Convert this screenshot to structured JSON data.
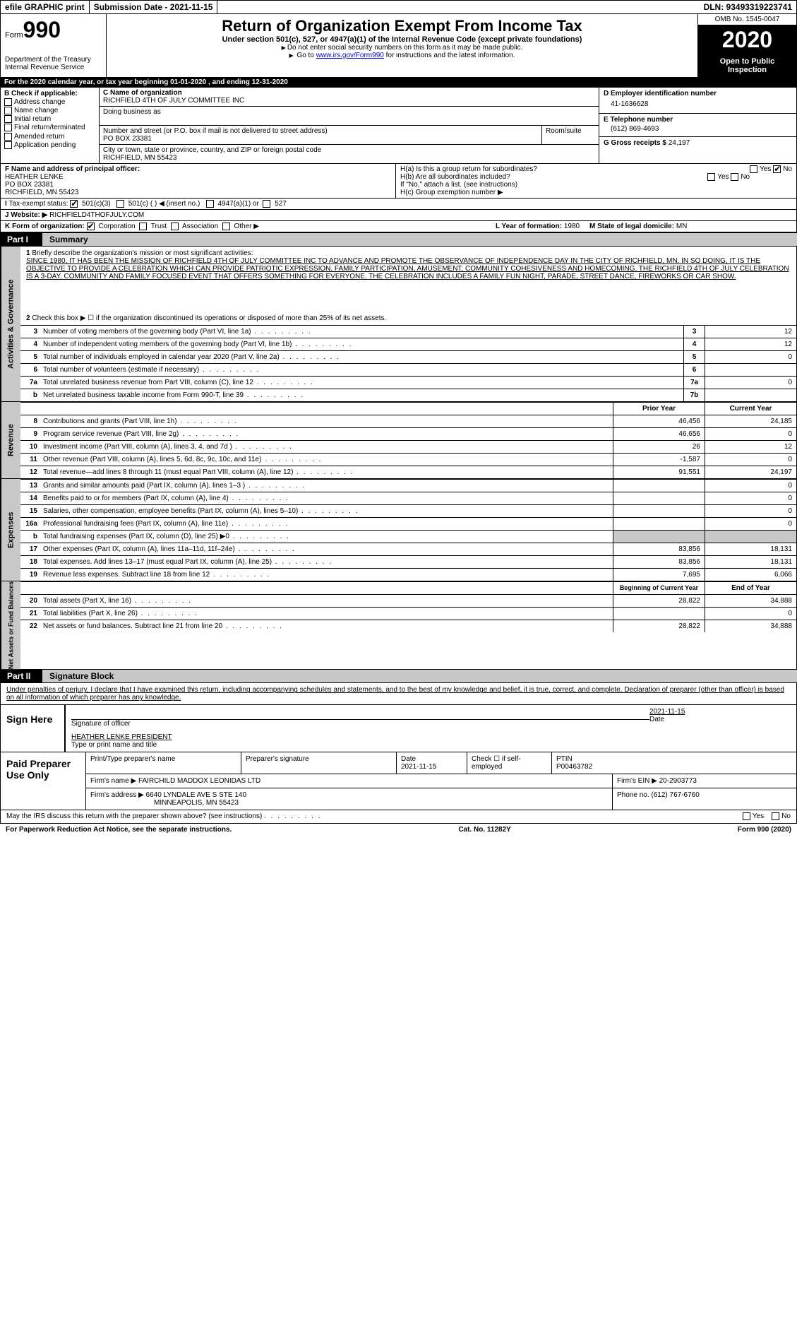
{
  "top": {
    "efile": "efile GRAPHIC print",
    "subdate_label": "Submission Date - 2021-11-15",
    "dln": "DLN: 93493319223741"
  },
  "header": {
    "form_word": "Form",
    "form_num": "990",
    "dept": "Department of the Treasury\nInternal Revenue Service",
    "title": "Return of Organization Exempt From Income Tax",
    "sub": "Under section 501(c), 527, or 4947(a)(1) of the Internal Revenue Code (except private foundations)",
    "note1": "Do not enter social security numbers on this form as it may be made public.",
    "note2_pre": "Go to ",
    "note2_link": "www.irs.gov/Form990",
    "note2_post": " for instructions and the latest information.",
    "omb": "OMB No. 1545-0047",
    "year": "2020",
    "inspect": "Open to Public Inspection"
  },
  "period": "For the 2020 calendar year, or tax year beginning 01-01-2020   , and ending 12-31-2020",
  "b": {
    "title": "B Check if applicable:",
    "items": [
      "Address change",
      "Name change",
      "Initial return",
      "Final return/terminated",
      "Amended return",
      "Application pending"
    ]
  },
  "c": {
    "name_lab": "C Name of organization",
    "name": "RICHFIELD 4TH OF JULY COMMITTEE INC",
    "dba_lab": "Doing business as",
    "street_lab": "Number and street (or P.O. box if mail is not delivered to street address)",
    "street": "PO BOX 23381",
    "room_lab": "Room/suite",
    "city_lab": "City or town, state or province, country, and ZIP or foreign postal code",
    "city": "RICHFIELD, MN  55423"
  },
  "d": {
    "lab": "D Employer identification number",
    "val": "41-1636628"
  },
  "e": {
    "lab": "E Telephone number",
    "val": "(612) 869-4693"
  },
  "g": {
    "lab": "G Gross receipts $",
    "val": "24,197"
  },
  "f": {
    "lab": "F  Name and address of principal officer:",
    "name": "HEATHER LENKE",
    "addr1": "PO BOX 23381",
    "addr2": "RICHFIELD, MN  55423"
  },
  "h": {
    "a": "H(a)  Is this a group return for subordinates?",
    "b": "H(b)  Are all subordinates included?",
    "note": "If \"No,\" attach a list. (see instructions)",
    "c": "H(c)  Group exemption number ▶"
  },
  "i": {
    "lab": "Tax-exempt status:",
    "opt1": "501(c)(3)",
    "opt2": "501(c) (  ) ◀ (insert no.)",
    "opt3": "4947(a)(1) or",
    "opt4": "527"
  },
  "j": {
    "lab": "J Website: ▶",
    "val": "RICHFIELD4THOFJULY.COM"
  },
  "k": {
    "lab": "K Form of organization:",
    "opts": [
      "Corporation",
      "Trust",
      "Association",
      "Other ▶"
    ]
  },
  "l": {
    "lab": "L Year of formation:",
    "val": "1980"
  },
  "m": {
    "lab": "M State of legal domicile:",
    "val": "MN"
  },
  "part1": {
    "label": "Part I",
    "title": "Summary",
    "vtab_gov": "Activities & Governance",
    "vtab_rev": "Revenue",
    "vtab_exp": "Expenses",
    "vtab_net": "Net Assets or Fund Balances",
    "line1_lab": "Briefly describe the organization's mission or most significant activities:",
    "line1_text": "SINCE 1980, IT HAS BEEN THE MISSION OF RICHFIELD 4TH OF JULY COMMITTEE INC TO ADVANCE AND PROMOTE THE OBSERVANCE OF INDEPENDENCE DAY IN THE CITY OF RICHFIELD, MN. IN SO DOING, IT IS THE OBJECTIVE TO PROVIDE A CELEBRATION WHICH CAN PROVIDE PATRIOTIC EXPRESSION, FAMILY PARTICIPATION, AMUSEMENT, COMMUNITY COHESIVENESS AND HOMECOMING. THE RICHFIELD 4TH OF JULY CELEBRATION IS A 3-DAY, COMMUNITY AND FAMILY FOCUSED EVENT THAT OFFERS SOMETHING FOR EVERYONE. THE CELEBRATION INCLUDES A FAMILY FUN NIGHT, PARADE, STREET DANCE, FIREWORKS OR CAR SHOW.",
    "line2": "Check this box ▶ ☐  if the organization discontinued its operations or disposed of more than 25% of its net assets.",
    "lines_gov": [
      {
        "n": "3",
        "t": "Number of voting members of the governing body (Part VI, line 1a)",
        "box": "3",
        "v": "12"
      },
      {
        "n": "4",
        "t": "Number of independent voting members of the governing body (Part VI, line 1b)",
        "box": "4",
        "v": "12"
      },
      {
        "n": "5",
        "t": "Total number of individuals employed in calendar year 2020 (Part V, line 2a)",
        "box": "5",
        "v": "0"
      },
      {
        "n": "6",
        "t": "Total number of volunteers (estimate if necessary)",
        "box": "6",
        "v": ""
      },
      {
        "n": "7a",
        "t": "Total unrelated business revenue from Part VIII, column (C), line 12",
        "box": "7a",
        "v": "0"
      },
      {
        "n": "b",
        "t": "Net unrelated business taxable income from Form 990-T, line 39",
        "box": "7b",
        "v": ""
      }
    ],
    "col_prior": "Prior Year",
    "col_curr": "Current Year",
    "lines_rev": [
      {
        "n": "8",
        "t": "Contributions and grants (Part VIII, line 1h)",
        "p": "46,456",
        "c": "24,185"
      },
      {
        "n": "9",
        "t": "Program service revenue (Part VIII, line 2g)",
        "p": "46,656",
        "c": "0"
      },
      {
        "n": "10",
        "t": "Investment income (Part VIII, column (A), lines 3, 4, and 7d )",
        "p": "26",
        "c": "12"
      },
      {
        "n": "11",
        "t": "Other revenue (Part VIII, column (A), lines 5, 6d, 8c, 9c, 10c, and 11e)",
        "p": "-1,587",
        "c": "0"
      },
      {
        "n": "12",
        "t": "Total revenue—add lines 8 through 11 (must equal Part VIII, column (A), line 12)",
        "p": "91,551",
        "c": "24,197"
      }
    ],
    "lines_exp": [
      {
        "n": "13",
        "t": "Grants and similar amounts paid (Part IX, column (A), lines 1–3 )",
        "p": "",
        "c": "0"
      },
      {
        "n": "14",
        "t": "Benefits paid to or for members (Part IX, column (A), line 4)",
        "p": "",
        "c": "0"
      },
      {
        "n": "15",
        "t": "Salaries, other compensation, employee benefits (Part IX, column (A), lines 5–10)",
        "p": "",
        "c": "0"
      },
      {
        "n": "16a",
        "t": "Professional fundraising fees (Part IX, column (A), line 11e)",
        "p": "",
        "c": "0"
      },
      {
        "n": "b",
        "t": "Total fundraising expenses (Part IX, column (D), line 25) ▶0",
        "p": "shade",
        "c": "shade"
      },
      {
        "n": "17",
        "t": "Other expenses (Part IX, column (A), lines 11a–11d, 11f–24e)",
        "p": "83,856",
        "c": "18,131"
      },
      {
        "n": "18",
        "t": "Total expenses. Add lines 13–17 (must equal Part IX, column (A), line 25)",
        "p": "83,856",
        "c": "18,131"
      },
      {
        "n": "19",
        "t": "Revenue less expenses. Subtract line 18 from line 12",
        "p": "7,695",
        "c": "6,066"
      }
    ],
    "col_beg": "Beginning of Current Year",
    "col_end": "End of Year",
    "lines_net": [
      {
        "n": "20",
        "t": "Total assets (Part X, line 16)",
        "p": "28,822",
        "c": "34,888"
      },
      {
        "n": "21",
        "t": "Total liabilities (Part X, line 26)",
        "p": "",
        "c": "0"
      },
      {
        "n": "22",
        "t": "Net assets or fund balances. Subtract line 21 from line 20",
        "p": "28,822",
        "c": "34,888"
      }
    ]
  },
  "part2": {
    "label": "Part II",
    "title": "Signature Block",
    "decl": "Under penalties of perjury, I declare that I have examined this return, including accompanying schedules and statements, and to the best of my knowledge and belief, it is true, correct, and complete. Declaration of preparer (other than officer) is based on all information of which preparer has any knowledge.",
    "sign_here": "Sign Here",
    "sig_officer": "Signature of officer",
    "sig_date_lab": "Date",
    "sig_date": "2021-11-15",
    "sig_name": "HEATHER LENKE  PRESIDENT",
    "sig_name_lab": "Type or print name and title",
    "paid_prep": "Paid Preparer Use Only",
    "prep_name_lab": "Print/Type preparer's name",
    "prep_sig_lab": "Preparer's signature",
    "prep_date_lab": "Date",
    "prep_date": "2021-11-15",
    "prep_self": "Check ☐ if self-employed",
    "ptin_lab": "PTIN",
    "ptin": "P00463782",
    "firm_name_lab": "Firm's name    ▶",
    "firm_name": "FAIRCHILD MADDOX LEONIDAS LTD",
    "firm_ein_lab": "Firm's EIN ▶",
    "firm_ein": "20-2903773",
    "firm_addr_lab": "Firm's address ▶",
    "firm_addr1": "6640 LYNDALE AVE S STE 140",
    "firm_addr2": "MINNEAPOLIS, MN  55423",
    "phone_lab": "Phone no.",
    "phone": "(612) 767-6760",
    "discuss": "May the IRS discuss this return with the preparer shown above? (see instructions)",
    "yes": "Yes",
    "no": "No"
  },
  "footer": {
    "paperwork": "For Paperwork Reduction Act Notice, see the separate instructions.",
    "cat": "Cat. No. 11282Y",
    "form": "Form 990 (2020)"
  }
}
